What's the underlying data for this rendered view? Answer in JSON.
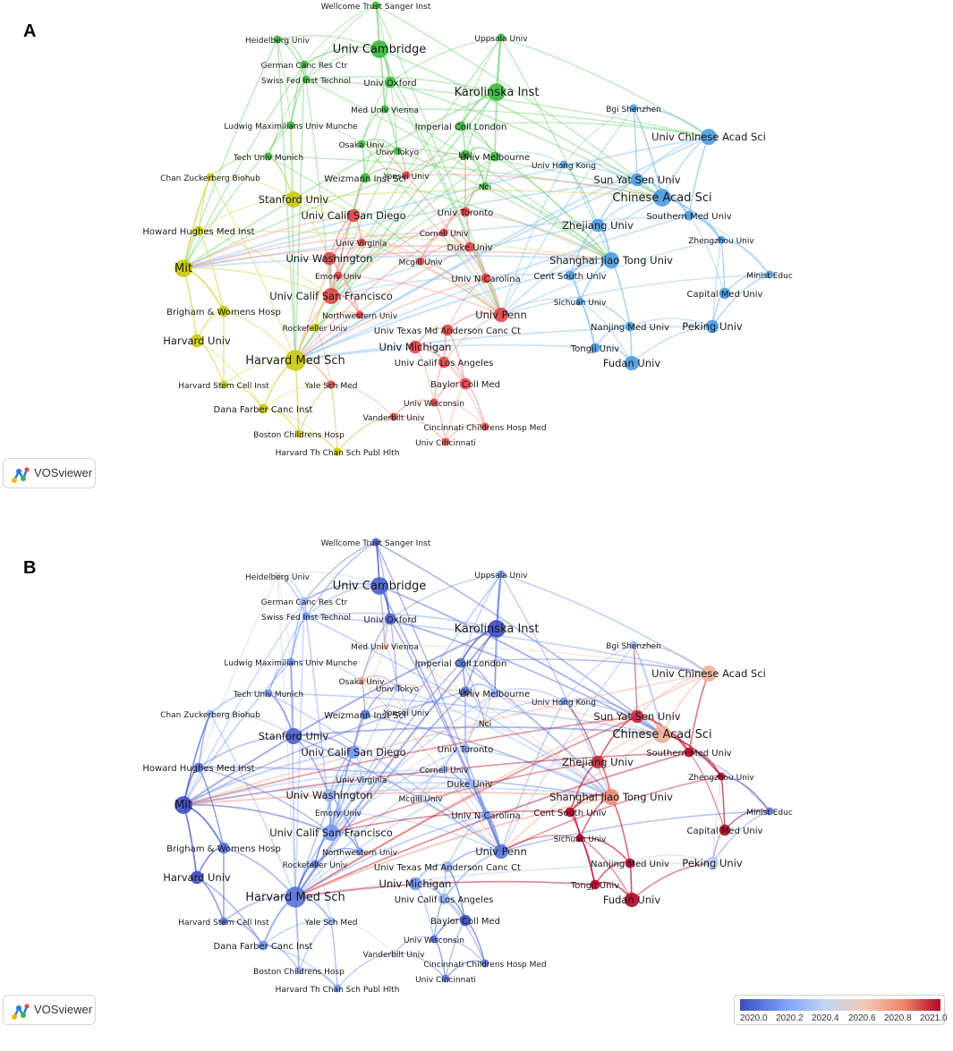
{
  "panels": [
    {
      "letter": "A",
      "mode": "cluster"
    },
    {
      "letter": "B",
      "mode": "overlay"
    }
  ],
  "logo": {
    "text": "VOSviewer",
    "icon": "vosviewer-logo-icon"
  },
  "colors": {
    "cluster_green": "#3cb83c",
    "cluster_blue": "#4a9be0",
    "cluster_red": "#e04545",
    "cluster_yellow": "#c9c90f",
    "overlay_low": "#3b4cc0",
    "overlay_high": "#b40426"
  },
  "legend": {
    "ticks": [
      "2020.0",
      "2020.2",
      "2020.4",
      "2020.6",
      "2020.8",
      "2021.0"
    ],
    "range": [
      2020.0,
      2021.0
    ]
  },
  "nodes": [
    {
      "label": "Wellcome Trust Sanger Inst",
      "cluster": "green",
      "size": 5,
      "year": 2020.05
    },
    {
      "label": "Heidelberg Univ",
      "cluster": "green",
      "size": 5,
      "year": 2020.5
    },
    {
      "label": "Uppsala Univ",
      "cluster": "green",
      "size": 5,
      "year": 2020.2
    },
    {
      "label": "Univ Cambridge",
      "cluster": "green",
      "size": 11,
      "year": 2020.05
    },
    {
      "label": "German Canc Res Ctr",
      "cluster": "green",
      "size": 5,
      "year": 2020.3
    },
    {
      "label": "Swiss Fed Inst Technol",
      "cluster": "green",
      "size": 5,
      "year": 2020.2
    },
    {
      "label": "Univ Oxford",
      "cluster": "green",
      "size": 7,
      "year": 2020.05
    },
    {
      "label": "Karolinska Inst",
      "cluster": "green",
      "size": 11,
      "year": 2020.0
    },
    {
      "label": "Med Univ Vienna",
      "cluster": "green",
      "size": 5,
      "year": 2020.6
    },
    {
      "label": "Bgi Shenzhen",
      "cluster": "blue",
      "size": 5,
      "year": 2020.3
    },
    {
      "label": "Ludwig Maximilians Univ Munche",
      "cluster": "green",
      "size": 5,
      "year": 2020.2
    },
    {
      "label": "Imperial Coll London",
      "cluster": "green",
      "size": 6,
      "year": 2020.1
    },
    {
      "label": "Osaka Univ",
      "cluster": "green",
      "size": 5,
      "year": 2020.7
    },
    {
      "label": "Univ Chinese Acad Sci",
      "cluster": "blue",
      "size": 10,
      "year": 2020.7
    },
    {
      "label": "Univ Tokyo",
      "cluster": "green",
      "size": 5,
      "year": 2020.3
    },
    {
      "label": "Tech Univ Munich",
      "cluster": "green",
      "size": 5,
      "year": 2020.2
    },
    {
      "label": "Ucl",
      "cluster": "green",
      "size": 6,
      "year": 2020.1
    },
    {
      "label": "Univ Melbourne",
      "cluster": "green",
      "size": 6,
      "year": 2020.3
    },
    {
      "label": "Univ Hong Kong",
      "cluster": "blue",
      "size": 5,
      "year": 2020.2
    },
    {
      "label": "Chan Zuckerberg Biohub",
      "cluster": "yellow",
      "size": 5,
      "year": 2020.3
    },
    {
      "label": "Weizmann Inst Sci",
      "cluster": "green",
      "size": 6,
      "year": 2020.1
    },
    {
      "label": "Yonsei Univ",
      "cluster": "red",
      "size": 5,
      "year": 2020.5
    },
    {
      "label": "Sun Yat Sen Univ",
      "cluster": "blue",
      "size": 8,
      "year": 2020.95
    },
    {
      "label": "Nci",
      "cluster": "green",
      "size": 5,
      "year": 2020.6
    },
    {
      "label": "Stanford Univ",
      "cluster": "yellow",
      "size": 10,
      "year": 2020.05
    },
    {
      "label": "Univ Calif San Diego",
      "cluster": "red",
      "size": 8,
      "year": 2020.2
    },
    {
      "label": "Univ Toronto",
      "cluster": "red",
      "size": 6,
      "year": 2020.3
    },
    {
      "label": "Chinese Acad Sci",
      "cluster": "blue",
      "size": 11,
      "year": 2020.7
    },
    {
      "label": "Southern Med Univ",
      "cluster": "blue",
      "size": 6,
      "year": 2021.0
    },
    {
      "label": "Howard Hughes Med Inst",
      "cluster": "yellow",
      "size": 6,
      "year": 2020.1
    },
    {
      "label": "Univ Virginia",
      "cluster": "red",
      "size": 5,
      "year": 2020.4
    },
    {
      "label": "Cornell Univ",
      "cluster": "red",
      "size": 5,
      "year": 2020.3
    },
    {
      "label": "Zhejiang Univ",
      "cluster": "blue",
      "size": 8,
      "year": 2020.95
    },
    {
      "label": "Zhengzhou Univ",
      "cluster": "blue",
      "size": 5,
      "year": 2021.0
    },
    {
      "label": "Duke Univ",
      "cluster": "red",
      "size": 6,
      "year": 2020.3
    },
    {
      "label": "Univ Washington",
      "cluster": "red",
      "size": 8,
      "year": 2020.3
    },
    {
      "label": "Mcgill Univ",
      "cluster": "red",
      "size": 5,
      "year": 2020.4
    },
    {
      "label": "Shanghai Jiao Tong Univ",
      "cluster": "blue",
      "size": 10,
      "year": 2020.8
    },
    {
      "label": "Mit",
      "cluster": "yellow",
      "size": 11,
      "year": 2020.0
    },
    {
      "label": "Emory Univ",
      "cluster": "red",
      "size": 5,
      "year": 2020.3
    },
    {
      "label": "Univ N Carolina",
      "cluster": "red",
      "size": 6,
      "year": 2020.2
    },
    {
      "label": "Cent South Univ",
      "cluster": "blue",
      "size": 6,
      "year": 2021.0
    },
    {
      "label": "Minist Educ",
      "cluster": "blue",
      "size": 5,
      "year": 2020.1
    },
    {
      "label": "Univ Calif San Francisco",
      "cluster": "red",
      "size": 10,
      "year": 2020.2
    },
    {
      "label": "Capital Med Univ",
      "cluster": "blue",
      "size": 7,
      "year": 2021.0
    },
    {
      "label": "Sichuan Univ",
      "cluster": "blue",
      "size": 5,
      "year": 2021.0
    },
    {
      "label": "Brigham & Womens Hosp",
      "cluster": "yellow",
      "size": 7,
      "year": 2020.1
    },
    {
      "label": "Northwestern Univ",
      "cluster": "red",
      "size": 5,
      "year": 2020.2
    },
    {
      "label": "Univ Penn",
      "cluster": "red",
      "size": 9,
      "year": 2020.1
    },
    {
      "label": "Rockefeller Univ",
      "cluster": "yellow",
      "size": 5,
      "year": 2020.1
    },
    {
      "label": "Univ Texas Md Anderson Canc Ct",
      "cluster": "red",
      "size": 7,
      "year": 2020.3
    },
    {
      "label": "Nanjing Med Univ",
      "cluster": "blue",
      "size": 6,
      "year": 2021.0
    },
    {
      "label": "Peking Univ",
      "cluster": "blue",
      "size": 8,
      "year": 2020.4
    },
    {
      "label": "Univ Michigan",
      "cluster": "red",
      "size": 8,
      "year": 2020.2
    },
    {
      "label": "Harvard Univ",
      "cluster": "yellow",
      "size": 8,
      "year": 2020.0
    },
    {
      "label": "Tongji Univ",
      "cluster": "blue",
      "size": 6,
      "year": 2021.0
    },
    {
      "label": "Harvard Med Sch",
      "cluster": "yellow",
      "size": 13,
      "year": 2020.1
    },
    {
      "label": "Univ Calif Los Angeles",
      "cluster": "red",
      "size": 7,
      "year": 2020.3
    },
    {
      "label": "Fudan Univ",
      "cluster": "blue",
      "size": 9,
      "year": 2021.0
    },
    {
      "label": "Harvard Stem Cell Inst",
      "cluster": "yellow",
      "size": 5,
      "year": 2020.1
    },
    {
      "label": "Yale Sch Med",
      "cluster": "red",
      "size": 5,
      "year": 2020.3
    },
    {
      "label": "Baylor Coll Med",
      "cluster": "red",
      "size": 7,
      "year": 2020.0
    },
    {
      "label": "Univ Wisconsin",
      "cluster": "red",
      "size": 5,
      "year": 2020.1
    },
    {
      "label": "Dana Farber Canc Inst",
      "cluster": "yellow",
      "size": 6,
      "year": 2020.2
    },
    {
      "label": "Vanderbilt Univ",
      "cluster": "red",
      "size": 5,
      "year": 2020.5
    },
    {
      "label": "Cincinnati Childrens Hosp Med",
      "cluster": "red",
      "size": 5,
      "year": 2020.1
    },
    {
      "label": "Boston Childrens Hosp",
      "cluster": "yellow",
      "size": 5,
      "year": 2020.3
    },
    {
      "label": "Univ Cincinnati",
      "cluster": "red",
      "size": 5,
      "year": 2020.1
    },
    {
      "label": "Harvard Th Chan Sch Publ Hlth",
      "cluster": "yellow",
      "size": 5,
      "year": 2020.2
    }
  ]
}
